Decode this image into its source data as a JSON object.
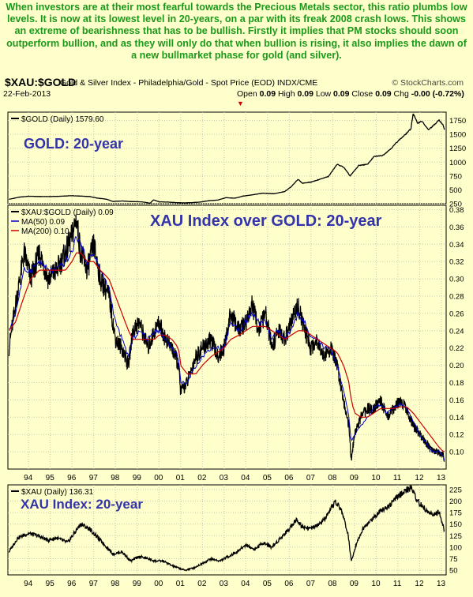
{
  "intro_text": "When investors are at their most fearful towards the Precious Metals sector, this ratio plumbs low levels. It is now at its lowest level in 20-years, on a par with its freak 2008 crash lows. This shows an extreme of bearishness that has to be bullish. Firstly it implies that PM stocks should soon outperform bullion, and as they will only do that when bullion is rising, it also implies the dawn of a new bullmarket phase for gold (and silver).",
  "header": {
    "symbol": "$XAU:$GOLD",
    "description": "Gold & Silver Index - Philadelphia/Gold - Spot Price (EOD) INDX/CME",
    "credit": "© StockCharts.com",
    "date": "22-Feb-2013",
    "ohlc": {
      "open_label": "Open",
      "open": "0.09",
      "high_label": "High",
      "high": "0.09",
      "low_label": "Low",
      "low": "0.09",
      "close_label": "Close",
      "close": "0.09",
      "chg_label": "Chg",
      "chg": "-0.00 (-0.72%)"
    }
  },
  "colors": {
    "background": "#ffffcc",
    "intro_text": "#1a9a1a",
    "annotation": "#3333aa",
    "price_line": "#000000",
    "ma50": "#0000cc",
    "ma200": "#cc0000",
    "grid": "#c8c8b4"
  },
  "chart_data": [
    {
      "type": "line",
      "panel": "gold",
      "legend": "$GOLD (Daily) 1579.60",
      "annotation": "GOLD: 20-year",
      "ylim": [
        250,
        1900
      ],
      "yticks": [
        "1750",
        "1500",
        "1250",
        "1000",
        "750",
        "500",
        "250"
      ],
      "ytick_values": [
        1750,
        1500,
        1250,
        1000,
        750,
        500,
        250
      ],
      "x": [
        1993.1,
        1993.6,
        1994.0,
        1994.5,
        1995.0,
        1995.5,
        1996.0,
        1996.3,
        1996.8,
        1997.2,
        1997.6,
        1997.9,
        1998.3,
        1998.7,
        1999.2,
        1999.6,
        1999.75,
        2000.0,
        2000.4,
        2000.8,
        2001.2,
        2001.5,
        2001.9,
        2002.3,
        2002.7,
        2003.1,
        2003.5,
        2003.9,
        2004.3,
        2004.8,
        2005.3,
        2005.8,
        2006.1,
        2006.4,
        2006.6,
        2007.0,
        2007.4,
        2007.8,
        2008.2,
        2008.5,
        2008.8,
        2009.2,
        2009.6,
        2009.9,
        2010.3,
        2010.7,
        2011.0,
        2011.3,
        2011.6,
        2011.7,
        2011.9,
        2012.1,
        2012.4,
        2012.7,
        2012.9,
        2013.1,
        2013.14
      ],
      "values": [
        330,
        370,
        385,
        380,
        380,
        385,
        395,
        390,
        380,
        350,
        330,
        290,
        300,
        290,
        285,
        260,
        320,
        285,
        280,
        270,
        265,
        270,
        280,
        305,
        315,
        360,
        350,
        390,
        410,
        440,
        430,
        470,
        560,
        690,
        620,
        640,
        690,
        740,
        960,
        910,
        750,
        940,
        960,
        1100,
        1120,
        1250,
        1380,
        1480,
        1600,
        1880,
        1700,
        1740,
        1580,
        1680,
        1760,
        1650,
        1580
      ]
    },
    {
      "type": "line",
      "panel": "ratio",
      "legend": "$XAU:$GOLD (Daily) 0.09",
      "ma_legend": [
        "MA(50) 0.09",
        "MA(200) 0.10"
      ],
      "annotation": "XAU Index over GOLD: 20-year",
      "ylim": [
        0.08,
        0.385
      ],
      "yticks": [
        "0.38",
        "0.36",
        "0.34",
        "0.32",
        "0.30",
        "0.28",
        "0.26",
        "0.24",
        "0.22",
        "0.20",
        "0.18",
        "0.16",
        "0.14",
        "0.12",
        "0.10"
      ],
      "ytick_values": [
        0.38,
        0.36,
        0.34,
        0.32,
        0.3,
        0.28,
        0.26,
        0.24,
        0.22,
        0.2,
        0.18,
        0.16,
        0.14,
        0.12,
        0.1
      ],
      "x": [
        1993.1,
        1993.4,
        1993.8,
        1994.1,
        1994.5,
        1994.9,
        1995.3,
        1995.7,
        1996.0,
        1996.2,
        1996.4,
        1996.7,
        1997.0,
        1997.3,
        1997.7,
        1998.0,
        1998.3,
        1998.6,
        1998.8,
        1999.1,
        1999.5,
        1999.8,
        2000.0,
        2000.3,
        2000.6,
        2000.9,
        2001.0,
        2001.3,
        2001.7,
        2002.0,
        2002.4,
        2002.7,
        2003.0,
        2003.3,
        2003.7,
        2004.0,
        2004.3,
        2004.6,
        2004.9,
        2005.2,
        2005.5,
        2005.8,
        2006.1,
        2006.4,
        2006.7,
        2007.0,
        2007.3,
        2007.6,
        2007.9,
        2008.2,
        2008.5,
        2008.75,
        2008.85,
        2009.0,
        2009.3,
        2009.6,
        2009.9,
        2010.2,
        2010.5,
        2010.8,
        2011.1,
        2011.4,
        2011.7,
        2012.0,
        2012.3,
        2012.6,
        2012.9,
        2013.1,
        2013.14
      ],
      "values": [
        0.22,
        0.27,
        0.33,
        0.3,
        0.33,
        0.3,
        0.31,
        0.33,
        0.35,
        0.37,
        0.33,
        0.31,
        0.34,
        0.3,
        0.28,
        0.23,
        0.22,
        0.2,
        0.24,
        0.25,
        0.22,
        0.24,
        0.25,
        0.23,
        0.22,
        0.2,
        0.17,
        0.18,
        0.21,
        0.22,
        0.23,
        0.21,
        0.22,
        0.26,
        0.24,
        0.25,
        0.27,
        0.24,
        0.26,
        0.22,
        0.24,
        0.23,
        0.25,
        0.27,
        0.24,
        0.22,
        0.23,
        0.21,
        0.22,
        0.2,
        0.16,
        0.13,
        0.09,
        0.12,
        0.14,
        0.15,
        0.15,
        0.16,
        0.14,
        0.15,
        0.16,
        0.15,
        0.13,
        0.12,
        0.11,
        0.1,
        0.1,
        0.095,
        0.088
      ],
      "ma50": [
        0.24,
        0.26,
        0.31,
        0.31,
        0.32,
        0.31,
        0.31,
        0.32,
        0.33,
        0.35,
        0.34,
        0.32,
        0.33,
        0.31,
        0.29,
        0.25,
        0.23,
        0.21,
        0.23,
        0.24,
        0.23,
        0.24,
        0.24,
        0.23,
        0.22,
        0.21,
        0.18,
        0.18,
        0.2,
        0.21,
        0.22,
        0.22,
        0.22,
        0.25,
        0.24,
        0.25,
        0.26,
        0.25,
        0.25,
        0.23,
        0.24,
        0.23,
        0.24,
        0.26,
        0.25,
        0.23,
        0.23,
        0.22,
        0.22,
        0.2,
        0.17,
        0.14,
        0.11,
        0.12,
        0.13,
        0.14,
        0.15,
        0.155,
        0.145,
        0.15,
        0.155,
        0.15,
        0.135,
        0.12,
        0.11,
        0.1,
        0.1,
        0.095,
        0.09
      ],
      "ma200": [
        0.24,
        0.25,
        0.28,
        0.3,
        0.31,
        0.31,
        0.31,
        0.31,
        0.32,
        0.33,
        0.33,
        0.32,
        0.32,
        0.31,
        0.3,
        0.28,
        0.26,
        0.24,
        0.23,
        0.23,
        0.23,
        0.23,
        0.235,
        0.235,
        0.23,
        0.22,
        0.2,
        0.19,
        0.19,
        0.2,
        0.21,
        0.215,
        0.22,
        0.23,
        0.235,
        0.24,
        0.245,
        0.245,
        0.245,
        0.24,
        0.235,
        0.23,
        0.235,
        0.24,
        0.24,
        0.235,
        0.23,
        0.225,
        0.22,
        0.215,
        0.2,
        0.18,
        0.16,
        0.145,
        0.14,
        0.14,
        0.145,
        0.15,
        0.15,
        0.15,
        0.152,
        0.152,
        0.145,
        0.135,
        0.125,
        0.115,
        0.105,
        0.1,
        0.1
      ]
    },
    {
      "type": "line",
      "panel": "xau",
      "legend": "$XAU (Daily) 136.31",
      "annotation": "XAU Index: 20-year",
      "ylim": [
        40,
        235
      ],
      "yticks": [
        "225",
        "200",
        "175",
        "150",
        "125",
        "100",
        "75",
        "50"
      ],
      "ytick_values": [
        225,
        200,
        175,
        150,
        125,
        100,
        75,
        50
      ],
      "x": [
        1993.1,
        1993.5,
        1994.0,
        1994.4,
        1994.9,
        1995.3,
        1995.8,
        1996.1,
        1996.4,
        1996.8,
        1997.2,
        1997.6,
        1997.9,
        1998.3,
        1998.7,
        1999.1,
        1999.5,
        1999.8,
        2000.2,
        2000.6,
        2000.9,
        2001.2,
        2001.6,
        2002.0,
        2002.4,
        2002.8,
        2003.2,
        2003.6,
        2004.0,
        2004.4,
        2004.8,
        2005.2,
        2005.6,
        2006.0,
        2006.3,
        2006.6,
        2007.0,
        2007.4,
        2007.8,
        2008.1,
        2008.4,
        2008.7,
        2008.85,
        2009.1,
        2009.4,
        2009.8,
        2010.2,
        2010.6,
        2011.0,
        2011.3,
        2011.6,
        2011.9,
        2012.3,
        2012.6,
        2012.9,
        2013.14
      ],
      "values": [
        90,
        120,
        130,
        125,
        115,
        120,
        110,
        130,
        150,
        140,
        120,
        100,
        85,
        90,
        70,
        80,
        75,
        70,
        70,
        60,
        55,
        50,
        55,
        65,
        75,
        70,
        80,
        90,
        105,
        95,
        110,
        100,
        120,
        140,
        160,
        145,
        140,
        150,
        170,
        200,
        180,
        130,
        70,
        110,
        140,
        160,
        180,
        190,
        210,
        220,
        230,
        200,
        180,
        170,
        175,
        136
      ]
    }
  ],
  "x_axis": {
    "tick_labels": [
      "94",
      "95",
      "96",
      "97",
      "98",
      "99",
      "00",
      "01",
      "02",
      "03",
      "04",
      "05",
      "06",
      "07",
      "08",
      "09",
      "10",
      "11",
      "12",
      "13"
    ],
    "tick_years": [
      1994,
      1995,
      1996,
      1997,
      1998,
      1999,
      2000,
      2001,
      2002,
      2003,
      2004,
      2005,
      2006,
      2007,
      2008,
      2009,
      2010,
      2011,
      2012,
      2013
    ]
  }
}
